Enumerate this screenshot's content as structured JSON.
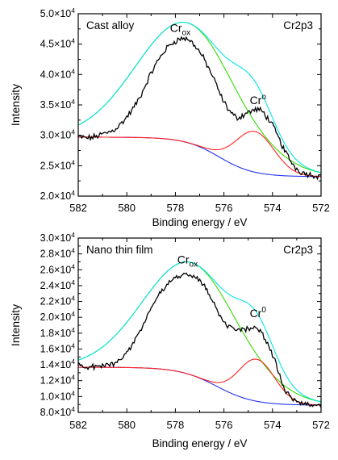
{
  "chart_data": [
    {
      "type": "line",
      "panel_label": "Cast alloy",
      "region_label": "Cr2p3",
      "xlabel": "Binding energy / eV",
      "ylabel": "Intensity",
      "x_reversed": true,
      "xlim": [
        582,
        572
      ],
      "ylim": [
        20000,
        50000
      ],
      "xticks": [
        582,
        580,
        578,
        576,
        574,
        572
      ],
      "yticks": [
        {
          "value": 20000,
          "mant": "2.0"
        },
        {
          "value": 25000,
          "mant": "2.5"
        },
        {
          "value": 30000,
          "mant": "3.0"
        },
        {
          "value": 35000,
          "mant": "3.5"
        },
        {
          "value": 40000,
          "mant": "4.0"
        },
        {
          "value": 45000,
          "mant": "4.5"
        },
        {
          "value": 50000,
          "mant": "5.0"
        }
      ],
      "annotations": [
        {
          "base": "Cr",
          "sub": "ox",
          "sup": "",
          "x": 577.8,
          "y": 47000
        },
        {
          "base": "Cr",
          "sub": "",
          "sup": "o",
          "x": 574.6,
          "y": 35100
        }
      ],
      "peaks": [
        {
          "center": 577.5,
          "height": 19700,
          "width": 2.1
        },
        {
          "center": 574.72,
          "height": 6700,
          "width": 0.8
        }
      ],
      "background": {
        "low": 23200,
        "high": 29700,
        "center": 576.2,
        "steepness": 1.4
      },
      "noise_amplitude": 400,
      "series": [
        {
          "role": "raw",
          "color": "#000000",
          "x": [
            582,
            581.5,
            581,
            580.5,
            580,
            579.5,
            579,
            578.5,
            578,
            577.5,
            577,
            576.5,
            576,
            575.5,
            575,
            574.5,
            574,
            573.5,
            573,
            572.5,
            572
          ],
          "y": [
            29700,
            29600,
            30200,
            31000,
            33000,
            36000,
            40200,
            43600,
            45500,
            45800,
            43700,
            40000,
            35500,
            33000,
            33800,
            34100,
            31600,
            27500,
            24500,
            23600,
            23300
          ]
        },
        {
          "role": "fit_envelope",
          "color": "#00e5e5"
        },
        {
          "role": "cr_ox_component",
          "color": "#33dd00"
        },
        {
          "role": "cr_metal_component",
          "color": "#ff2020"
        },
        {
          "role": "background",
          "color": "#2233ee"
        }
      ]
    },
    {
      "type": "line",
      "panel_label": "Nano thin film",
      "region_label": "Cr2p3",
      "xlabel": "Binding energy / eV",
      "ylabel": "Intensity",
      "x_reversed": true,
      "xlim": [
        582,
        572
      ],
      "ylim": [
        8000,
        30000
      ],
      "xticks": [
        582,
        580,
        578,
        576,
        574,
        572
      ],
      "yticks": [
        {
          "value": 8000,
          "mant": "8.0"
        },
        {
          "value": 10000,
          "mant": "1.0"
        },
        {
          "value": 12000,
          "mant": "1.2"
        },
        {
          "value": 14000,
          "mant": "1.4"
        },
        {
          "value": 16000,
          "mant": "1.6"
        },
        {
          "value": 18000,
          "mant": "1.8"
        },
        {
          "value": 20000,
          "mant": "2.0"
        },
        {
          "value": 22000,
          "mant": "2.2"
        },
        {
          "value": 24000,
          "mant": "2.4"
        },
        {
          "value": 26000,
          "mant": "2.6"
        },
        {
          "value": 28000,
          "mant": "2.8"
        },
        {
          "value": 30000,
          "mant": "3.0"
        }
      ],
      "annotations": [
        {
          "base": "Cr",
          "sub": "ox",
          "sup": "",
          "x": 577.5,
          "y": 26800
        },
        {
          "base": "Cr",
          "sub": "",
          "sup": "0",
          "x": 574.6,
          "y": 20000
        }
      ],
      "peaks": [
        {
          "center": 577.3,
          "height": 14200,
          "width": 2.0
        },
        {
          "center": 574.65,
          "height": 5300,
          "width": 0.75
        }
      ],
      "background": {
        "low": 8900,
        "high": 13700,
        "center": 576.3,
        "steepness": 1.3
      },
      "noise_amplitude": 280,
      "series": [
        {
          "role": "raw",
          "color": "#000000",
          "x": [
            582,
            581.5,
            581,
            580.5,
            580,
            579.5,
            579,
            578.5,
            578,
            577.5,
            577,
            576.5,
            576,
            575.5,
            575,
            574.5,
            574,
            573.5,
            573,
            572.5,
            572
          ],
          "y": [
            14000,
            13700,
            13900,
            14300,
            15600,
            18000,
            21200,
            23500,
            25000,
            25300,
            24700,
            22300,
            19500,
            18300,
            18600,
            18300,
            15200,
            11000,
            9500,
            9000,
            8900
          ]
        },
        {
          "role": "fit_envelope",
          "color": "#00e5e5"
        },
        {
          "role": "cr_ox_component",
          "color": "#33dd00"
        },
        {
          "role": "cr_metal_component",
          "color": "#ff2020"
        },
        {
          "role": "background",
          "color": "#2233ee"
        }
      ]
    }
  ]
}
